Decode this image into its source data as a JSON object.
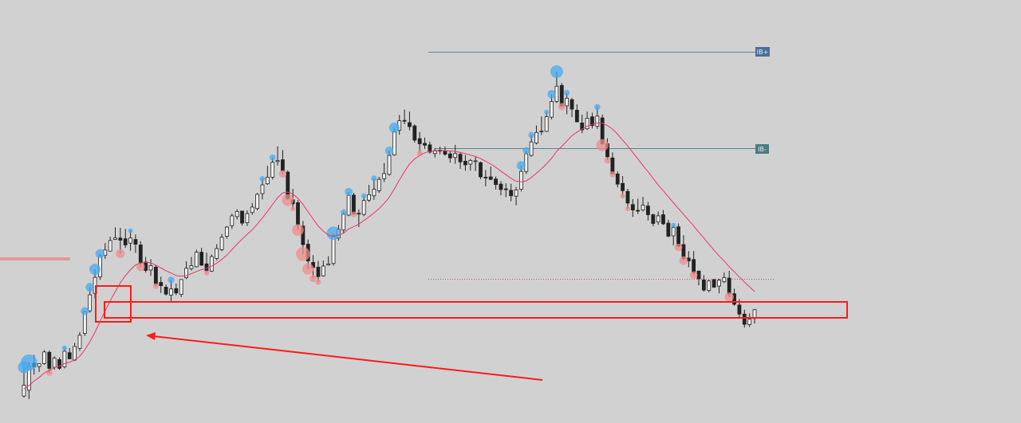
{
  "chart_data": {
    "type": "candlestick",
    "title": "",
    "xlabel": "",
    "ylabel": "",
    "ylim": [
      0,
      100
    ],
    "grid": false,
    "legend": "none",
    "series": [
      {
        "type": "ohlc",
        "values": [
          [
            6.1,
            14.0,
            5.7,
            9.1
          ],
          [
            7.7,
            15.3,
            5.3,
            14.3
          ],
          [
            15.1,
            17.4,
            12.0,
            14.1
          ],
          [
            14.2,
            15.1,
            12.7,
            15.0
          ],
          [
            15.0,
            18.7,
            14.7,
            18.2
          ],
          [
            18.1,
            18.6,
            12.5,
            13.7
          ],
          [
            14.0,
            17.0,
            13.3,
            16.5
          ],
          [
            16.1,
            16.7,
            13.3,
            13.7
          ],
          [
            14.1,
            19.3,
            13.7,
            18.4
          ],
          [
            18.0,
            19.3,
            16.3,
            16.3
          ],
          [
            16.0,
            20.7,
            15.7,
            19.7
          ],
          [
            19.2,
            23.7,
            18.5,
            22.8
          ],
          [
            23.3,
            29.4,
            22.6,
            29.2
          ],
          [
            29.5,
            36.0,
            29.0,
            33.9
          ],
          [
            34.3,
            40.9,
            32.9,
            38.7
          ],
          [
            38.8,
            45.2,
            38.0,
            44.6
          ],
          [
            44.7,
            48.1,
            43.8,
            46.2
          ],
          [
            45.9,
            49.9,
            45.8,
            48.8
          ],
          [
            49.1,
            52.4,
            49.0,
            49.5
          ],
          [
            49.5,
            52.3,
            45.2,
            48.9
          ],
          [
            49.3,
            52.0,
            46.8,
            47.6
          ],
          [
            48.1,
            51.5,
            46.0,
            49.5
          ],
          [
            49.1,
            50.5,
            45.4,
            47.8
          ],
          [
            47.6,
            48.6,
            41.6,
            42.6
          ],
          [
            42.9,
            44.3,
            40.0,
            40.6
          ],
          [
            40.7,
            43.7,
            39.1,
            41.9
          ],
          [
            41.5,
            42.1,
            36.3,
            36.8
          ],
          [
            37.3,
            38.9,
            34.4,
            36.4
          ],
          [
            36.0,
            36.7,
            33.7,
            34.1
          ],
          [
            33.8,
            38.0,
            31.8,
            35.5
          ],
          [
            35.6,
            37.0,
            33.8,
            34.4
          ],
          [
            34.0,
            38.2,
            33.3,
            38.1
          ],
          [
            38.6,
            43.1,
            38.2,
            41.2
          ],
          [
            41.1,
            44.3,
            40.6,
            41.9
          ],
          [
            41.6,
            46.3,
            41.4,
            45.6
          ],
          [
            45.6,
            46.8,
            42.0,
            42.0
          ],
          [
            42.4,
            45.5,
            39.9,
            40.5
          ],
          [
            40.4,
            45.0,
            40.2,
            44.4
          ],
          [
            43.9,
            47.8,
            43.4,
            46.6
          ],
          [
            46.3,
            50.6,
            45.9,
            49.7
          ],
          [
            50.0,
            52.8,
            49.3,
            52.5
          ],
          [
            52.9,
            56.2,
            52.0,
            55.6
          ],
          [
            55.4,
            57.4,
            54.6,
            56.8
          ],
          [
            56.9,
            57.0,
            52.9,
            53.6
          ],
          [
            53.7,
            57.1,
            52.8,
            56.2
          ],
          [
            56.5,
            59.1,
            55.9,
            58.0
          ],
          [
            57.6,
            61.9,
            57.1,
            61.5
          ],
          [
            61.7,
            65.8,
            60.1,
            64.1
          ],
          [
            64.4,
            69.3,
            64.1,
            66.2
          ],
          [
            66.2,
            71.6,
            65.6,
            70.3
          ],
          [
            70.5,
            74.7,
            69.4,
            70.8
          ],
          [
            71.0,
            73.7,
            67.1,
            67.9
          ],
          [
            67.6,
            68.1,
            59.9,
            60.4
          ],
          [
            60.0,
            63.0,
            57.5,
            58.9
          ],
          [
            59.2,
            59.9,
            51.7,
            53.1
          ],
          [
            52.8,
            54.2,
            45.1,
            47.7
          ],
          [
            47.8,
            49.1,
            41.0,
            43.2
          ],
          [
            42.8,
            44.8,
            38.4,
            41.4
          ],
          [
            41.5,
            43.2,
            37.4,
            38.9
          ],
          [
            39.1,
            43.3,
            38.9,
            41.8
          ],
          [
            42.1,
            44.5,
            41.9,
            42.4
          ],
          [
            42.5,
            50.8,
            41.9,
            49.9
          ],
          [
            49.5,
            53.1,
            48.8,
            51.9
          ],
          [
            51.7,
            56.6,
            50.7,
            56.1
          ],
          [
            55.8,
            62.2,
            55.5,
            61.2
          ],
          [
            61.3,
            61.9,
            56.0,
            56.1
          ],
          [
            56.3,
            57.4,
            52.5,
            56.2
          ],
          [
            56.0,
            61.1,
            55.5,
            59.8
          ],
          [
            59.9,
            64.1,
            59.4,
            61.4
          ],
          [
            61.1,
            65.9,
            60.0,
            62.9
          ],
          [
            62.5,
            66.3,
            61.9,
            65.6
          ],
          [
            65.8,
            70.1,
            64.9,
            67.2
          ],
          [
            67.0,
            73.5,
            66.6,
            72.2
          ],
          [
            72.3,
            79.8,
            72.1,
            78.7
          ],
          [
            79.1,
            83.3,
            77.9,
            81.7
          ],
          [
            81.8,
            84.8,
            80.8,
            81.6
          ],
          [
            81.2,
            84.2,
            79.1,
            80.1
          ],
          [
            80.3,
            80.7,
            75.7,
            76.4
          ],
          [
            76.8,
            78.6,
            72.8,
            75.4
          ],
          [
            75.5,
            77.1,
            74.0,
            75.0
          ],
          [
            75.1,
            76.0,
            72.7,
            73.1
          ],
          [
            72.7,
            74.2,
            71.6,
            73.4
          ],
          [
            73.6,
            74.6,
            72.5,
            73.5
          ],
          [
            73.4,
            74.6,
            72.1,
            72.5
          ],
          [
            72.6,
            73.3,
            70.2,
            71.5
          ],
          [
            71.6,
            75.1,
            69.9,
            72.7
          ],
          [
            72.5,
            73.1,
            68.5,
            70.4
          ],
          [
            70.6,
            72.3,
            68.0,
            69.6
          ],
          [
            69.8,
            71.2,
            68.0,
            70.8
          ],
          [
            70.5,
            71.8,
            67.9,
            70.7
          ],
          [
            70.2,
            70.5,
            65.7,
            66.3
          ],
          [
            66.2,
            68.2,
            63.7,
            66.1
          ],
          [
            66.3,
            69.1,
            65.4,
            65.6
          ],
          [
            65.7,
            66.4,
            62.8,
            64.2
          ],
          [
            64.3,
            65.1,
            61.2,
            62.8
          ],
          [
            63.0,
            64.5,
            60.7,
            62.8
          ],
          [
            62.6,
            64.4,
            59.6,
            61.1
          ],
          [
            61.0,
            63.5,
            58.5,
            62.7
          ],
          [
            62.9,
            69.4,
            62.3,
            67.8
          ],
          [
            67.8,
            73.5,
            67.1,
            72.6
          ],
          [
            72.2,
            77.8,
            71.8,
            75.9
          ],
          [
            75.6,
            80.4,
            75.2,
            78.5
          ],
          [
            78.9,
            82.9,
            77.8,
            78.9
          ],
          [
            78.8,
            84.1,
            78.6,
            82.8
          ],
          [
            82.7,
            89.0,
            82.1,
            87.0
          ],
          [
            87.0,
            95.2,
            86.6,
            91.2
          ],
          [
            91.4,
            92.1,
            85.6,
            85.8
          ],
          [
            85.8,
            89.4,
            83.5,
            87.9
          ],
          [
            87.5,
            88.0,
            82.7,
            84.9
          ],
          [
            84.6,
            86.2,
            81.3,
            81.4
          ],
          [
            81.1,
            83.4,
            78.3,
            79.2
          ],
          [
            79.5,
            84.2,
            79.2,
            82.4
          ],
          [
            82.8,
            83.9,
            79.6,
            80.4
          ],
          [
            80.2,
            85.5,
            79.5,
            83.0
          ],
          [
            82.5,
            83.4,
            75.0,
            75.4
          ],
          [
            75.4,
            76.9,
            70.8,
            71.8
          ],
          [
            71.5,
            73.0,
            67.0,
            67.2
          ],
          [
            67.1,
            67.8,
            63.4,
            64.3
          ],
          [
            64.5,
            66.5,
            61.0,
            62.5
          ],
          [
            62.3,
            63.0,
            57.5,
            59.1
          ],
          [
            58.7,
            60.2,
            55.3,
            57.2
          ],
          [
            57.1,
            60.3,
            56.1,
            57.0
          ],
          [
            57.2,
            60.8,
            56.8,
            58.5
          ],
          [
            58.3,
            59.4,
            54.3,
            55.9
          ],
          [
            55.9,
            56.2,
            52.7,
            53.5
          ],
          [
            53.9,
            56.8,
            53.1,
            55.6
          ],
          [
            55.9,
            57.2,
            53.1,
            53.4
          ],
          [
            53.6,
            54.5,
            49.7,
            50.0
          ],
          [
            50.1,
            53.0,
            47.5,
            52.4
          ],
          [
            52.6,
            53.5,
            46.9,
            47.3
          ],
          [
            47.7,
            50.3,
            43.3,
            43.9
          ],
          [
            44.0,
            45.9,
            41.5,
            43.2
          ],
          [
            43.6,
            45.9,
            39.3,
            40.0
          ],
          [
            40.4,
            40.6,
            36.5,
            38.3
          ],
          [
            38.0,
            39.3,
            34.8,
            35.2
          ],
          [
            35.1,
            38.0,
            34.6,
            37.7
          ],
          [
            38.1,
            38.2,
            35.8,
            36.0
          ],
          [
            36.3,
            38.3,
            34.3,
            37.9
          ],
          [
            37.5,
            40.0,
            37.1,
            38.6
          ],
          [
            38.5,
            40.5,
            33.3,
            34.1
          ],
          [
            34.2,
            35.6,
            30.9,
            31.3
          ],
          [
            31.1,
            32.7,
            27.5,
            28.6
          ],
          [
            28.6,
            29.8,
            24.9,
            25.8
          ],
          [
            25.7,
            28.8,
            25.1,
            27.2
          ],
          [
            27.4,
            30.0,
            26.0,
            29.8
          ]
        ]
      },
      {
        "type": "line",
        "color": "#e8386b",
        "values": [
          8.0,
          9.0,
          10.2,
          11.2,
          12.4,
          13.1,
          13.9,
          14.3,
          15.0,
          15.4,
          16.0,
          17.0,
          18.8,
          21.0,
          23.6,
          26.6,
          29.5,
          32.2,
          34.8,
          37.2,
          39.2,
          40.8,
          42.1,
          42.6,
          42.8,
          42.7,
          42.0,
          41.3,
          40.5,
          39.9,
          39.2,
          39.0,
          39.2,
          39.7,
          40.3,
          40.8,
          41.2,
          41.8,
          42.6,
          43.6,
          44.8,
          46.3,
          47.8,
          49.2,
          50.5,
          51.8,
          53.3,
          55.0,
          56.8,
          58.7,
          60.6,
          61.9,
          62.1,
          61.6,
          60.4,
          58.7,
          56.7,
          54.7,
          52.8,
          51.4,
          50.3,
          50.0,
          50.3,
          50.9,
          52.0,
          52.6,
          53.3,
          54.3,
          55.3,
          56.4,
          57.6,
          59.0,
          60.7,
          63.0,
          65.4,
          67.8,
          69.8,
          71.2,
          72.2,
          72.9,
          73.3,
          73.5,
          73.6,
          73.5,
          73.4,
          73.3,
          73.0,
          72.7,
          72.3,
          71.9,
          71.3,
          70.6,
          69.8,
          68.9,
          67.9,
          66.9,
          65.9,
          65.1,
          64.9,
          65.2,
          66.1,
          67.3,
          68.5,
          69.9,
          71.4,
          73.3,
          74.7,
          76.1,
          77.6,
          78.6,
          79.4,
          80.2,
          80.7,
          81.1,
          81.0,
          80.4,
          79.4,
          78.0,
          76.4,
          74.8,
          73.0,
          71.2,
          69.4,
          67.7,
          65.9,
          64.1,
          62.5,
          60.8,
          59.2,
          57.6,
          56.0,
          54.4,
          52.8,
          51.1,
          49.5,
          47.8,
          46.2,
          44.6,
          43.2,
          41.6,
          40.2,
          38.8,
          37.4,
          36.1,
          34.8
        ]
      }
    ]
  }
}
